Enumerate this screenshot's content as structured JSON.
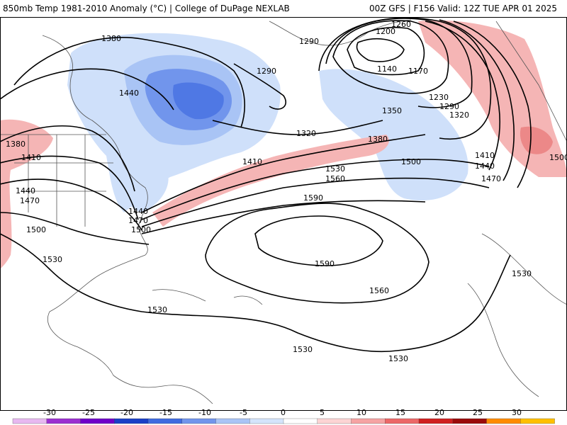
{
  "header": {
    "left_title": "850mb Temp 1981-2010 Anomaly (°C) | College of DuPage NEXLAB",
    "right_title": "00Z GFS | F156 Valid: 12Z TUE APR 01 2025"
  },
  "map": {
    "contour_labels": [
      {
        "id": "c1380a",
        "text": "1380"
      },
      {
        "id": "c1440a",
        "text": "1440"
      },
      {
        "id": "c1380b",
        "text": "1380"
      },
      {
        "id": "c1410a",
        "text": "1410"
      },
      {
        "id": "c1440b",
        "text": "1440"
      },
      {
        "id": "c1470a",
        "text": "1470"
      },
      {
        "id": "c1500a",
        "text": "1500"
      },
      {
        "id": "c1530a",
        "text": "1530"
      },
      {
        "id": "c1290a",
        "text": "1290"
      },
      {
        "id": "c1320a",
        "text": "1320"
      },
      {
        "id": "c1410b",
        "text": "1410"
      },
      {
        "id": "c1440c",
        "text": "1440"
      },
      {
        "id": "c1470b",
        "text": "1470"
      },
      {
        "id": "c1500b",
        "text": "1500"
      },
      {
        "id": "c1290b",
        "text": "1290"
      },
      {
        "id": "c1260",
        "text": "1260"
      },
      {
        "id": "c1200",
        "text": "1200"
      },
      {
        "id": "c1140",
        "text": "1140"
      },
      {
        "id": "c1170",
        "text": "1170"
      },
      {
        "id": "c1230",
        "text": "1230"
      },
      {
        "id": "c1290c",
        "text": "1290"
      },
      {
        "id": "c1320b",
        "text": "1320"
      },
      {
        "id": "c1350",
        "text": "1350"
      },
      {
        "id": "c1380c",
        "text": "1380"
      },
      {
        "id": "c1530b",
        "text": "1530"
      },
      {
        "id": "c1560a",
        "text": "1560"
      },
      {
        "id": "c1500c",
        "text": "1500"
      },
      {
        "id": "c1410c",
        "text": "1410"
      },
      {
        "id": "c1440d",
        "text": "1440"
      },
      {
        "id": "c1470c",
        "text": "1470"
      },
      {
        "id": "c1500d",
        "text": "1500"
      },
      {
        "id": "c1590a",
        "text": "1590"
      },
      {
        "id": "c1590b",
        "text": "1590"
      },
      {
        "id": "c1560b",
        "text": "1560"
      },
      {
        "id": "c1530c",
        "text": "1530"
      },
      {
        "id": "c1530d",
        "text": "1530"
      },
      {
        "id": "c1530e",
        "text": "1530"
      },
      {
        "id": "c1530f",
        "text": "1530"
      }
    ]
  },
  "colorbar": {
    "tick_labels": [
      "-30",
      "-25",
      "-20",
      "-15",
      "-10",
      "-5",
      "0",
      "5",
      "10",
      "15",
      "20",
      "25",
      "30"
    ],
    "colors": [
      "#e7b8f0",
      "#9b2fd1",
      "#6f00c9",
      "#1a3fc7",
      "#3f6be0",
      "#7195ec",
      "#a9c4f5",
      "#d4e4fb",
      "#ffffff",
      "#fcd4d4",
      "#f5a3a3",
      "#ec6868",
      "#d02020",
      "#9a0b0b",
      "#ff8c00",
      "#ffc000"
    ]
  }
}
